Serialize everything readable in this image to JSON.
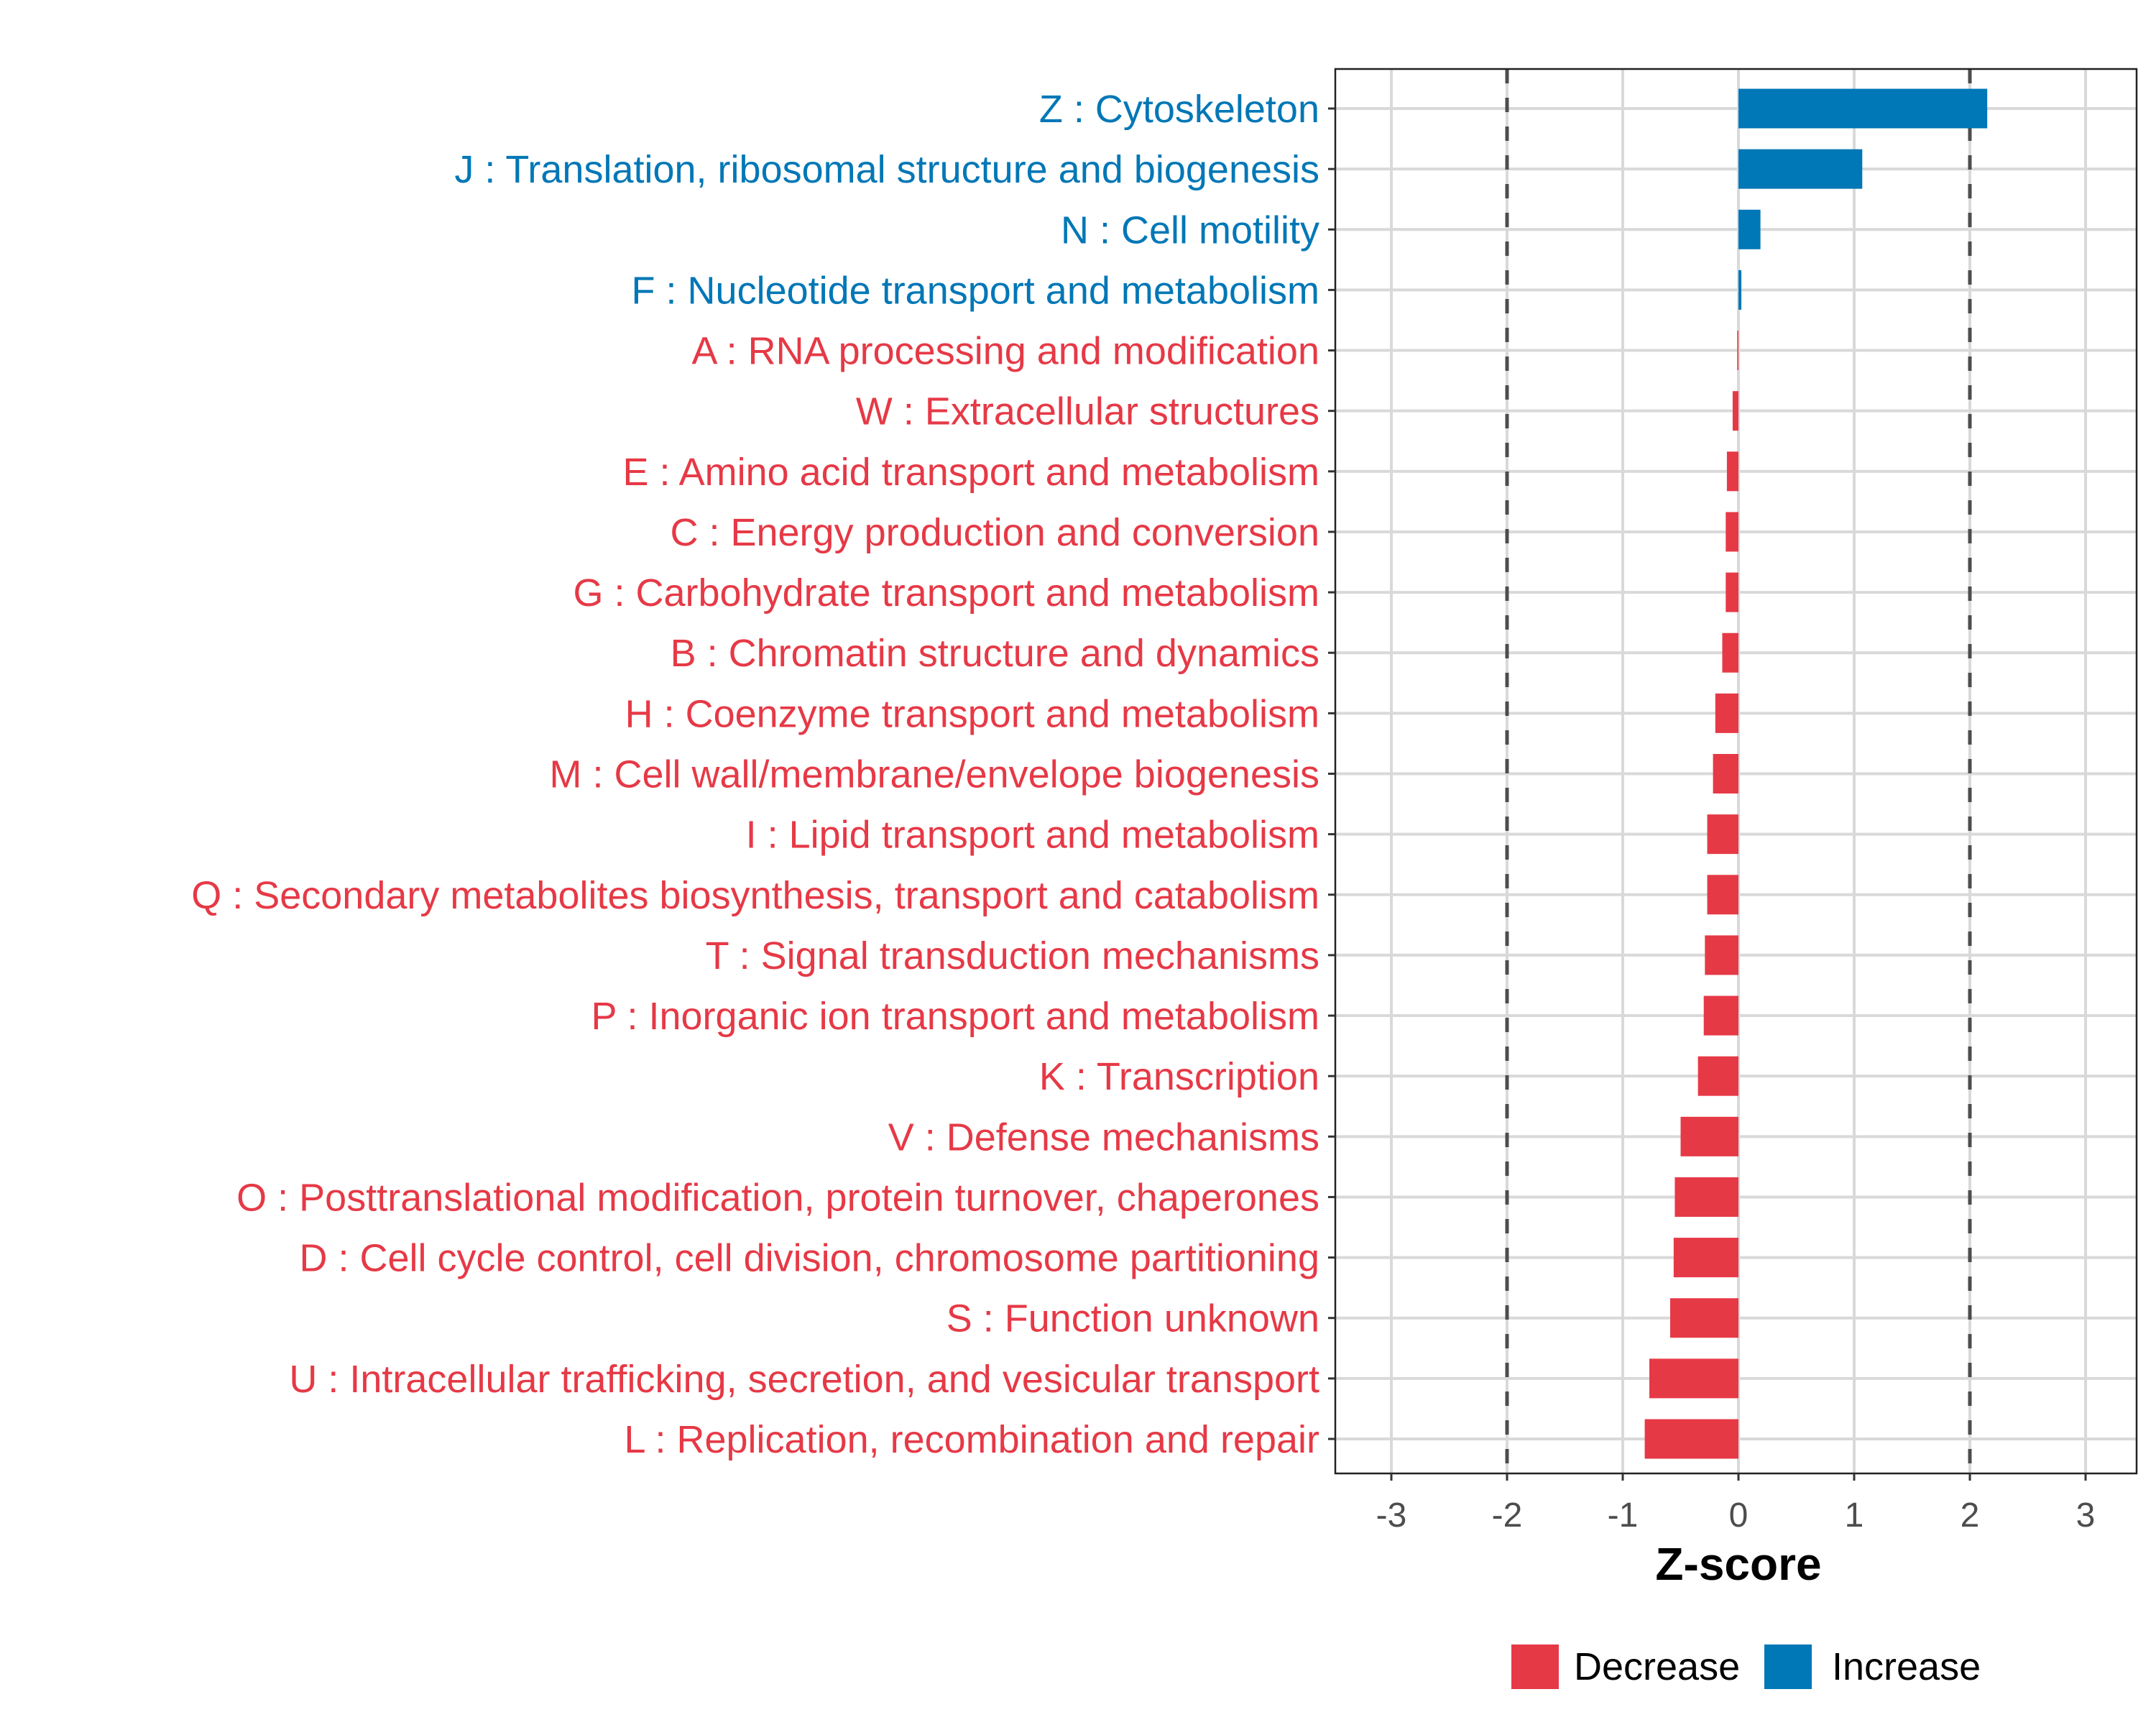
{
  "chart_data": {
    "type": "bar",
    "orientation": "horizontal",
    "title": "",
    "xlabel": "Z-score",
    "ylabel": "",
    "xlim": [
      -3.45,
      3.45
    ],
    "xticks": [
      -3,
      -2,
      -1,
      0,
      1,
      2,
      3
    ],
    "xtick_labels": [
      "-3",
      "-2",
      "-1",
      "0",
      "1",
      "2",
      "3"
    ],
    "reference_lines": [
      -2,
      2
    ],
    "grid": true,
    "legend_position": "bottom",
    "legend": [
      {
        "name": "Decrease",
        "color": "#E63946"
      },
      {
        "name": "Increase",
        "color": "#0077B6"
      }
    ],
    "categories": [
      "Z : Cytoskeleton",
      "J : Translation, ribosomal structure and biogenesis",
      "N : Cell motility",
      "F : Nucleotide transport and metabolism",
      "A : RNA processing and modification",
      "W : Extracellular structures",
      "E : Amino acid transport and metabolism",
      "C : Energy production and conversion",
      "G : Carbohydrate transport and metabolism",
      "B : Chromatin structure and dynamics",
      "H : Coenzyme transport and metabolism",
      "M : Cell wall/membrane/envelope biogenesis",
      "I : Lipid transport and metabolism",
      "Q : Secondary metabolites biosynthesis, transport and catabolism",
      "T : Signal transduction mechanisms",
      "P : Inorganic ion transport and metabolism",
      "K : Transcription",
      "V : Defense mechanisms",
      "O : Posttranslational modification, protein turnover, chaperones",
      "D : Cell cycle control, cell division, chromosome partitioning",
      "S : Function unknown",
      "U : Intracellular trafficking, secretion, and vesicular transport",
      "L : Replication, recombination and repair"
    ],
    "values": [
      2.15,
      1.07,
      0.19,
      0.025,
      -0.01,
      -0.05,
      -0.1,
      -0.11,
      -0.11,
      -0.14,
      -0.2,
      -0.22,
      -0.27,
      -0.27,
      -0.29,
      -0.3,
      -0.35,
      -0.5,
      -0.55,
      -0.56,
      -0.59,
      -0.77,
      -0.81
    ]
  }
}
